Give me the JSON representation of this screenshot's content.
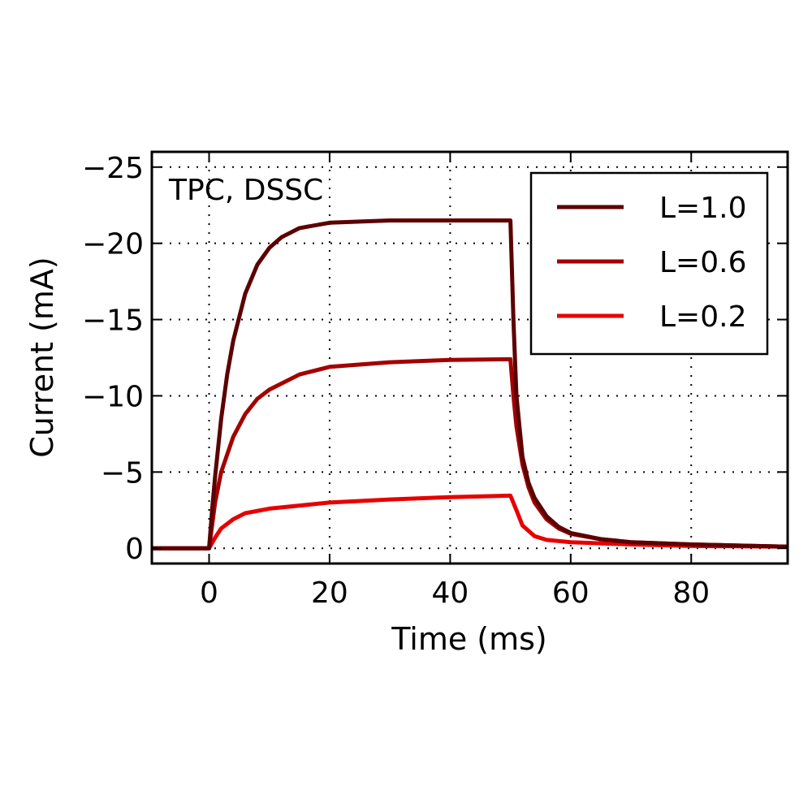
{
  "chart_data": {
    "type": "line",
    "title": "",
    "annotation": "TPC, DSSC",
    "xlabel": "Time (ms)",
    "ylabel": "Current (mA)",
    "xlim": [
      -9.5,
      96
    ],
    "ylim": [
      1,
      -26
    ],
    "y_inverted": true,
    "grid": true,
    "legend_placement": "top-right",
    "xticks": [
      0,
      20,
      40,
      60,
      80
    ],
    "xtick_labels": [
      "0",
      "20",
      "40",
      "60",
      "80"
    ],
    "yticks": [
      0,
      -5,
      -10,
      -15,
      -20,
      -25
    ],
    "ytick_labels": [
      "0",
      "−5",
      "−10",
      "−15",
      "−20",
      "−25"
    ],
    "series": [
      {
        "name": "L=1.0",
        "color": "#5c0000",
        "x": [
          -10,
          0,
          0.5,
          1,
          2,
          3,
          4,
          6,
          8,
          10,
          12,
          15,
          20,
          30,
          40,
          50,
          50.5,
          51,
          52,
          53,
          54,
          56,
          58,
          60,
          65,
          70,
          80,
          96
        ],
        "y": [
          0,
          0,
          -2.5,
          -4.7,
          -8.5,
          -11.4,
          -13.6,
          -16.7,
          -18.6,
          -19.7,
          -20.4,
          -21.0,
          -21.35,
          -21.5,
          -21.5,
          -21.5,
          -15,
          -10,
          -6,
          -4.3,
          -3.3,
          -2.1,
          -1.4,
          -1.0,
          -0.6,
          -0.4,
          -0.25,
          -0.1
        ]
      },
      {
        "name": "L=0.6",
        "color": "#a30000",
        "x": [
          -10,
          0,
          1,
          2,
          4,
          6,
          8,
          10,
          15,
          20,
          30,
          40,
          50,
          50.5,
          51,
          52,
          53,
          54,
          56,
          58,
          60,
          65,
          70,
          80,
          96
        ],
        "y": [
          0,
          0,
          -3,
          -5,
          -7.3,
          -8.8,
          -9.8,
          -10.4,
          -11.4,
          -11.9,
          -12.2,
          -12.35,
          -12.4,
          -10,
          -8,
          -5.5,
          -4,
          -3,
          -1.9,
          -1.3,
          -0.95,
          -0.6,
          -0.4,
          -0.25,
          -0.1
        ]
      },
      {
        "name": "L=0.2",
        "color": "#e80000",
        "x": [
          -10,
          0,
          1,
          2,
          4,
          6,
          10,
          20,
          30,
          40,
          50,
          51,
          52,
          54,
          56,
          60,
          70,
          80,
          96
        ],
        "y": [
          0,
          0,
          -0.7,
          -1.3,
          -1.9,
          -2.3,
          -2.6,
          -3.0,
          -3.2,
          -3.35,
          -3.45,
          -2.5,
          -1.5,
          -0.8,
          -0.55,
          -0.4,
          -0.25,
          -0.15,
          -0.1
        ]
      }
    ]
  }
}
